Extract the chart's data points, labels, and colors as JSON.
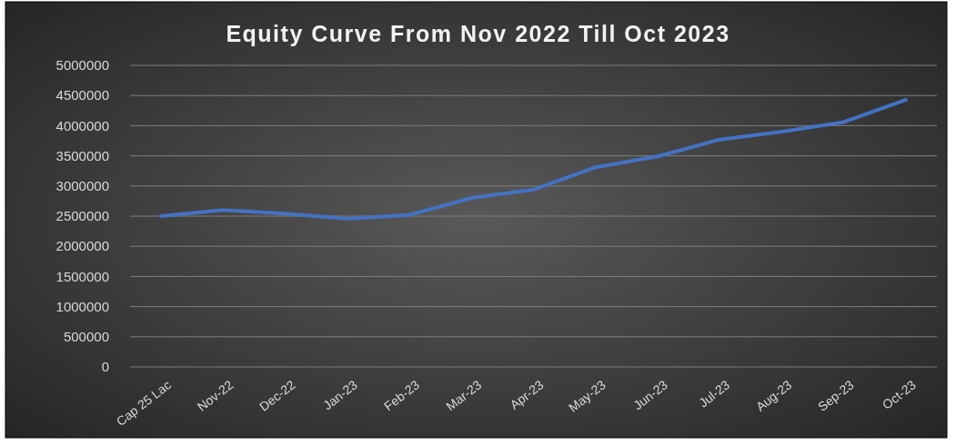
{
  "chart_data": {
    "type": "line",
    "title": "Equity Curve From Nov 2022 Till Oct 2023",
    "categories": [
      "Cap 25 Lac",
      "Nov-22",
      "Dec-22",
      "Jan-23",
      "Feb-23",
      "Mar-23",
      "Apr-23",
      "May-23",
      "Jun-23",
      "Jul-23",
      "Aug-23",
      "Sep-23",
      "Oct-23"
    ],
    "series": [
      {
        "color": "#4472c4",
        "values": [
          2500000,
          2600000,
          2540000,
          2460000,
          2520000,
          2800000,
          2940000,
          3310000,
          3490000,
          3770000,
          3900000,
          4060000,
          4430000
        ]
      }
    ],
    "ylim": [
      0,
      5000000
    ],
    "yticks": [
      0,
      500000,
      1000000,
      1500000,
      2000000,
      2500000,
      3000000,
      3500000,
      4000000,
      4500000,
      5000000
    ],
    "grid": "y",
    "marker": "none",
    "line_style": "solid"
  }
}
